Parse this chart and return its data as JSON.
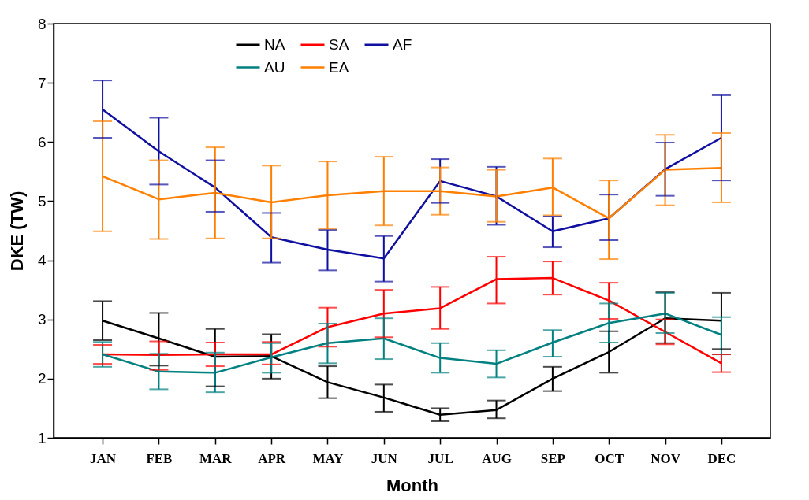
{
  "chart_data": {
    "type": "line",
    "xlabel": "Month",
    "ylabel": "DKE (TW)",
    "categories": [
      "JAN",
      "FEB",
      "MAR",
      "APR",
      "MAY",
      "JUN",
      "JUL",
      "AUG",
      "SEP",
      "OCT",
      "NOV",
      "DEC"
    ],
    "ylim": [
      1,
      8
    ],
    "yticks": [
      1,
      2,
      3,
      4,
      5,
      6,
      7,
      8
    ],
    "grid": false,
    "legend": "top",
    "marker": "none",
    "line_style": "solid",
    "series": [
      {
        "name": "NA",
        "color": "#000000",
        "values": [
          2.98,
          2.68,
          2.37,
          2.38,
          1.94,
          1.68,
          1.39,
          1.47,
          2.0,
          2.45,
          3.02,
          2.98
        ],
        "errors": [
          [
            2.65,
            3.31
          ],
          [
            2.22,
            3.11
          ],
          [
            1.87,
            2.84
          ],
          [
            2.0,
            2.75
          ],
          [
            1.67,
            2.21
          ],
          [
            1.44,
            1.9
          ],
          [
            1.28,
            1.5
          ],
          [
            1.33,
            1.63
          ],
          [
            1.79,
            2.2
          ],
          [
            2.1,
            2.8
          ],
          [
            2.6,
            3.46
          ],
          [
            2.5,
            3.45
          ]
        ]
      },
      {
        "name": "SA",
        "color": "#ff0000",
        "values": [
          2.41,
          2.4,
          2.41,
          2.41,
          2.87,
          3.1,
          3.19,
          3.68,
          3.7,
          3.32,
          2.79,
          2.26
        ],
        "errors": [
          [
            2.25,
            2.57
          ],
          [
            2.15,
            2.63
          ],
          [
            2.21,
            2.61
          ],
          [
            2.24,
            2.62
          ],
          [
            2.54,
            3.2
          ],
          [
            2.7,
            3.5
          ],
          [
            2.84,
            3.55
          ],
          [
            3.27,
            4.06
          ],
          [
            3.42,
            3.98
          ],
          [
            3.01,
            3.62
          ],
          [
            2.58,
            3.0
          ],
          [
            2.11,
            2.41
          ]
        ]
      },
      {
        "name": "AF",
        "color": "#1010a0",
        "values": [
          6.55,
          5.84,
          5.23,
          4.39,
          4.18,
          4.03,
          5.34,
          5.08,
          4.49,
          4.71,
          5.54,
          6.07
        ],
        "errors": [
          [
            6.07,
            7.04
          ],
          [
            5.28,
            6.41
          ],
          [
            4.82,
            5.69
          ],
          [
            3.96,
            4.8
          ],
          [
            3.83,
            4.51
          ],
          [
            3.64,
            4.41
          ],
          [
            4.97,
            5.71
          ],
          [
            4.6,
            5.58
          ],
          [
            4.22,
            4.74
          ],
          [
            4.34,
            5.11
          ],
          [
            5.09,
            5.99
          ],
          [
            5.35,
            6.79
          ]
        ]
      },
      {
        "name": "AU",
        "color": "#008080",
        "values": [
          2.41,
          2.12,
          2.1,
          2.36,
          2.6,
          2.68,
          2.35,
          2.25,
          2.61,
          2.94,
          3.1,
          2.74
        ],
        "errors": [
          [
            2.2,
            2.62
          ],
          [
            1.82,
            2.42
          ],
          [
            1.77,
            2.44
          ],
          [
            2.1,
            2.6
          ],
          [
            2.26,
            2.93
          ],
          [
            2.33,
            3.02
          ],
          [
            2.1,
            2.6
          ],
          [
            2.02,
            2.48
          ],
          [
            2.37,
            2.82
          ],
          [
            2.61,
            3.27
          ],
          [
            2.77,
            3.45
          ],
          [
            2.41,
            3.04
          ]
        ]
      },
      {
        "name": "EA",
        "color": "#ff8000",
        "values": [
          5.42,
          5.03,
          5.14,
          4.98,
          5.1,
          5.17,
          5.17,
          5.08,
          5.23,
          4.71,
          5.53,
          5.56
        ],
        "errors": [
          [
            4.49,
            6.35
          ],
          [
            4.36,
            5.69
          ],
          [
            4.37,
            5.91
          ],
          [
            4.37,
            5.6
          ],
          [
            4.53,
            5.67
          ],
          [
            4.59,
            5.75
          ],
          [
            4.77,
            5.57
          ],
          [
            4.65,
            5.53
          ],
          [
            4.76,
            5.72
          ],
          [
            4.02,
            5.35
          ],
          [
            4.93,
            6.12
          ],
          [
            4.98,
            6.15
          ]
        ]
      }
    ]
  }
}
